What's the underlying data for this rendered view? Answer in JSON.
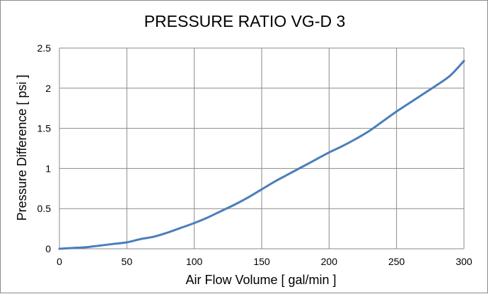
{
  "chart_data": {
    "type": "line",
    "title": "PRESSURE RATIO VG-D 3",
    "xlabel": "Air Flow Volume [ gal/min ]",
    "ylabel": "Pressure Difference [ psi ]",
    "xlim": [
      0,
      300
    ],
    "ylim": [
      0,
      2.5
    ],
    "xticks": [
      "0",
      "50",
      "100",
      "150",
      "200",
      "250",
      "300"
    ],
    "yticks": [
      "0",
      "0.5",
      "1",
      "1.5",
      "2",
      "2.5"
    ],
    "grid": true,
    "legend": "none",
    "series": [
      {
        "color": "#4a7ebb",
        "x": [
          0,
          10,
          20,
          30,
          40,
          50,
          60,
          70,
          80,
          90,
          100,
          110,
          120,
          130,
          140,
          150,
          160,
          170,
          180,
          190,
          200,
          210,
          220,
          230,
          240,
          250,
          260,
          270,
          280,
          290,
          300
        ],
        "y": [
          0.0,
          0.01,
          0.02,
          0.04,
          0.06,
          0.08,
          0.12,
          0.15,
          0.2,
          0.26,
          0.32,
          0.39,
          0.47,
          0.55,
          0.64,
          0.74,
          0.84,
          0.93,
          1.02,
          1.11,
          1.2,
          1.28,
          1.37,
          1.47,
          1.59,
          1.71,
          1.82,
          1.93,
          2.04,
          2.16,
          2.34
        ]
      }
    ]
  }
}
